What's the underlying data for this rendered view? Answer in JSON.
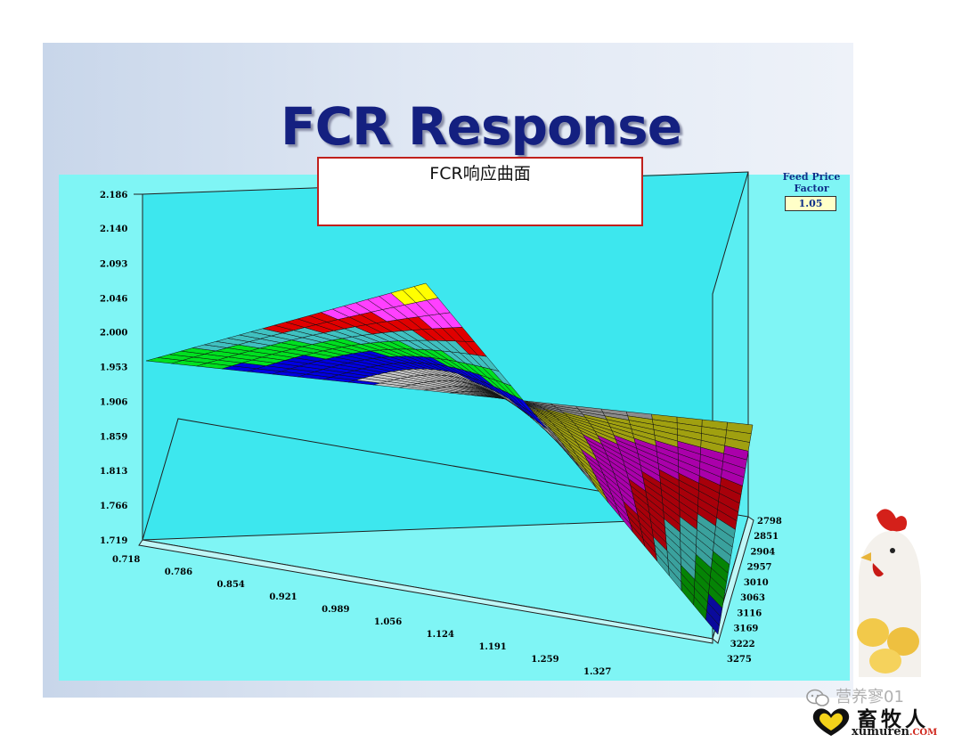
{
  "slide": {
    "title": "FCR Response",
    "caption": "FCR响应曲面",
    "feed_price_factor_label": "Feed Price Factor",
    "feed_price_factor_value": "1.05"
  },
  "watermark": {
    "wechat_text": "营养寥01",
    "brand_name": "畜牧人",
    "brand_url": "xumuren",
    "brand_url_domain": ".COM"
  },
  "colors": {
    "panel_background": "#7ff5f5",
    "wall": "#3de7ee",
    "bands": [
      "#000000",
      "#0a0a9c",
      "#058405",
      "#3aa19d",
      "#a8000a",
      "#aa00aa",
      "#a0a010",
      "#8c8c8c",
      "#c8c8c8",
      "#0000e0",
      "#00e020",
      "#40c0c0",
      "#e00000",
      "#ff40ff",
      "#ffff00"
    ]
  },
  "chart_data": {
    "type": "surface3d",
    "title": "",
    "xlabel": "",
    "ylabel": "",
    "zlabel": "",
    "z_axis_ticks": [
      "2.186",
      "2.140",
      "2.093",
      "2.046",
      "2.000",
      "1.953",
      "1.906",
      "1.859",
      "1.813",
      "1.766",
      "1.719"
    ],
    "x_axis_ticks": [
      "0.718",
      "0.786",
      "0.854",
      "0.921",
      "0.989",
      "1.056",
      "1.124",
      "1.191",
      "1.259",
      "1.327"
    ],
    "y_axis_ticks": [
      "2798",
      "2851",
      "2904",
      "2957",
      "3010",
      "3063",
      "3116",
      "3169",
      "3222",
      "3275"
    ],
    "zlim": [
      1.719,
      2.186
    ],
    "xlim": [
      0.718,
      1.327
    ],
    "ylim": [
      2798,
      3275
    ],
    "corner_values": [
      {
        "x": 0.718,
        "y": 2798,
        "z": 1.955
      },
      {
        "x": 0.718,
        "y": 3275,
        "z": 2.065
      },
      {
        "x": 1.327,
        "y": 2798,
        "z": 1.86
      },
      {
        "x": 1.327,
        "y": 3275,
        "z": 1.727
      }
    ]
  }
}
